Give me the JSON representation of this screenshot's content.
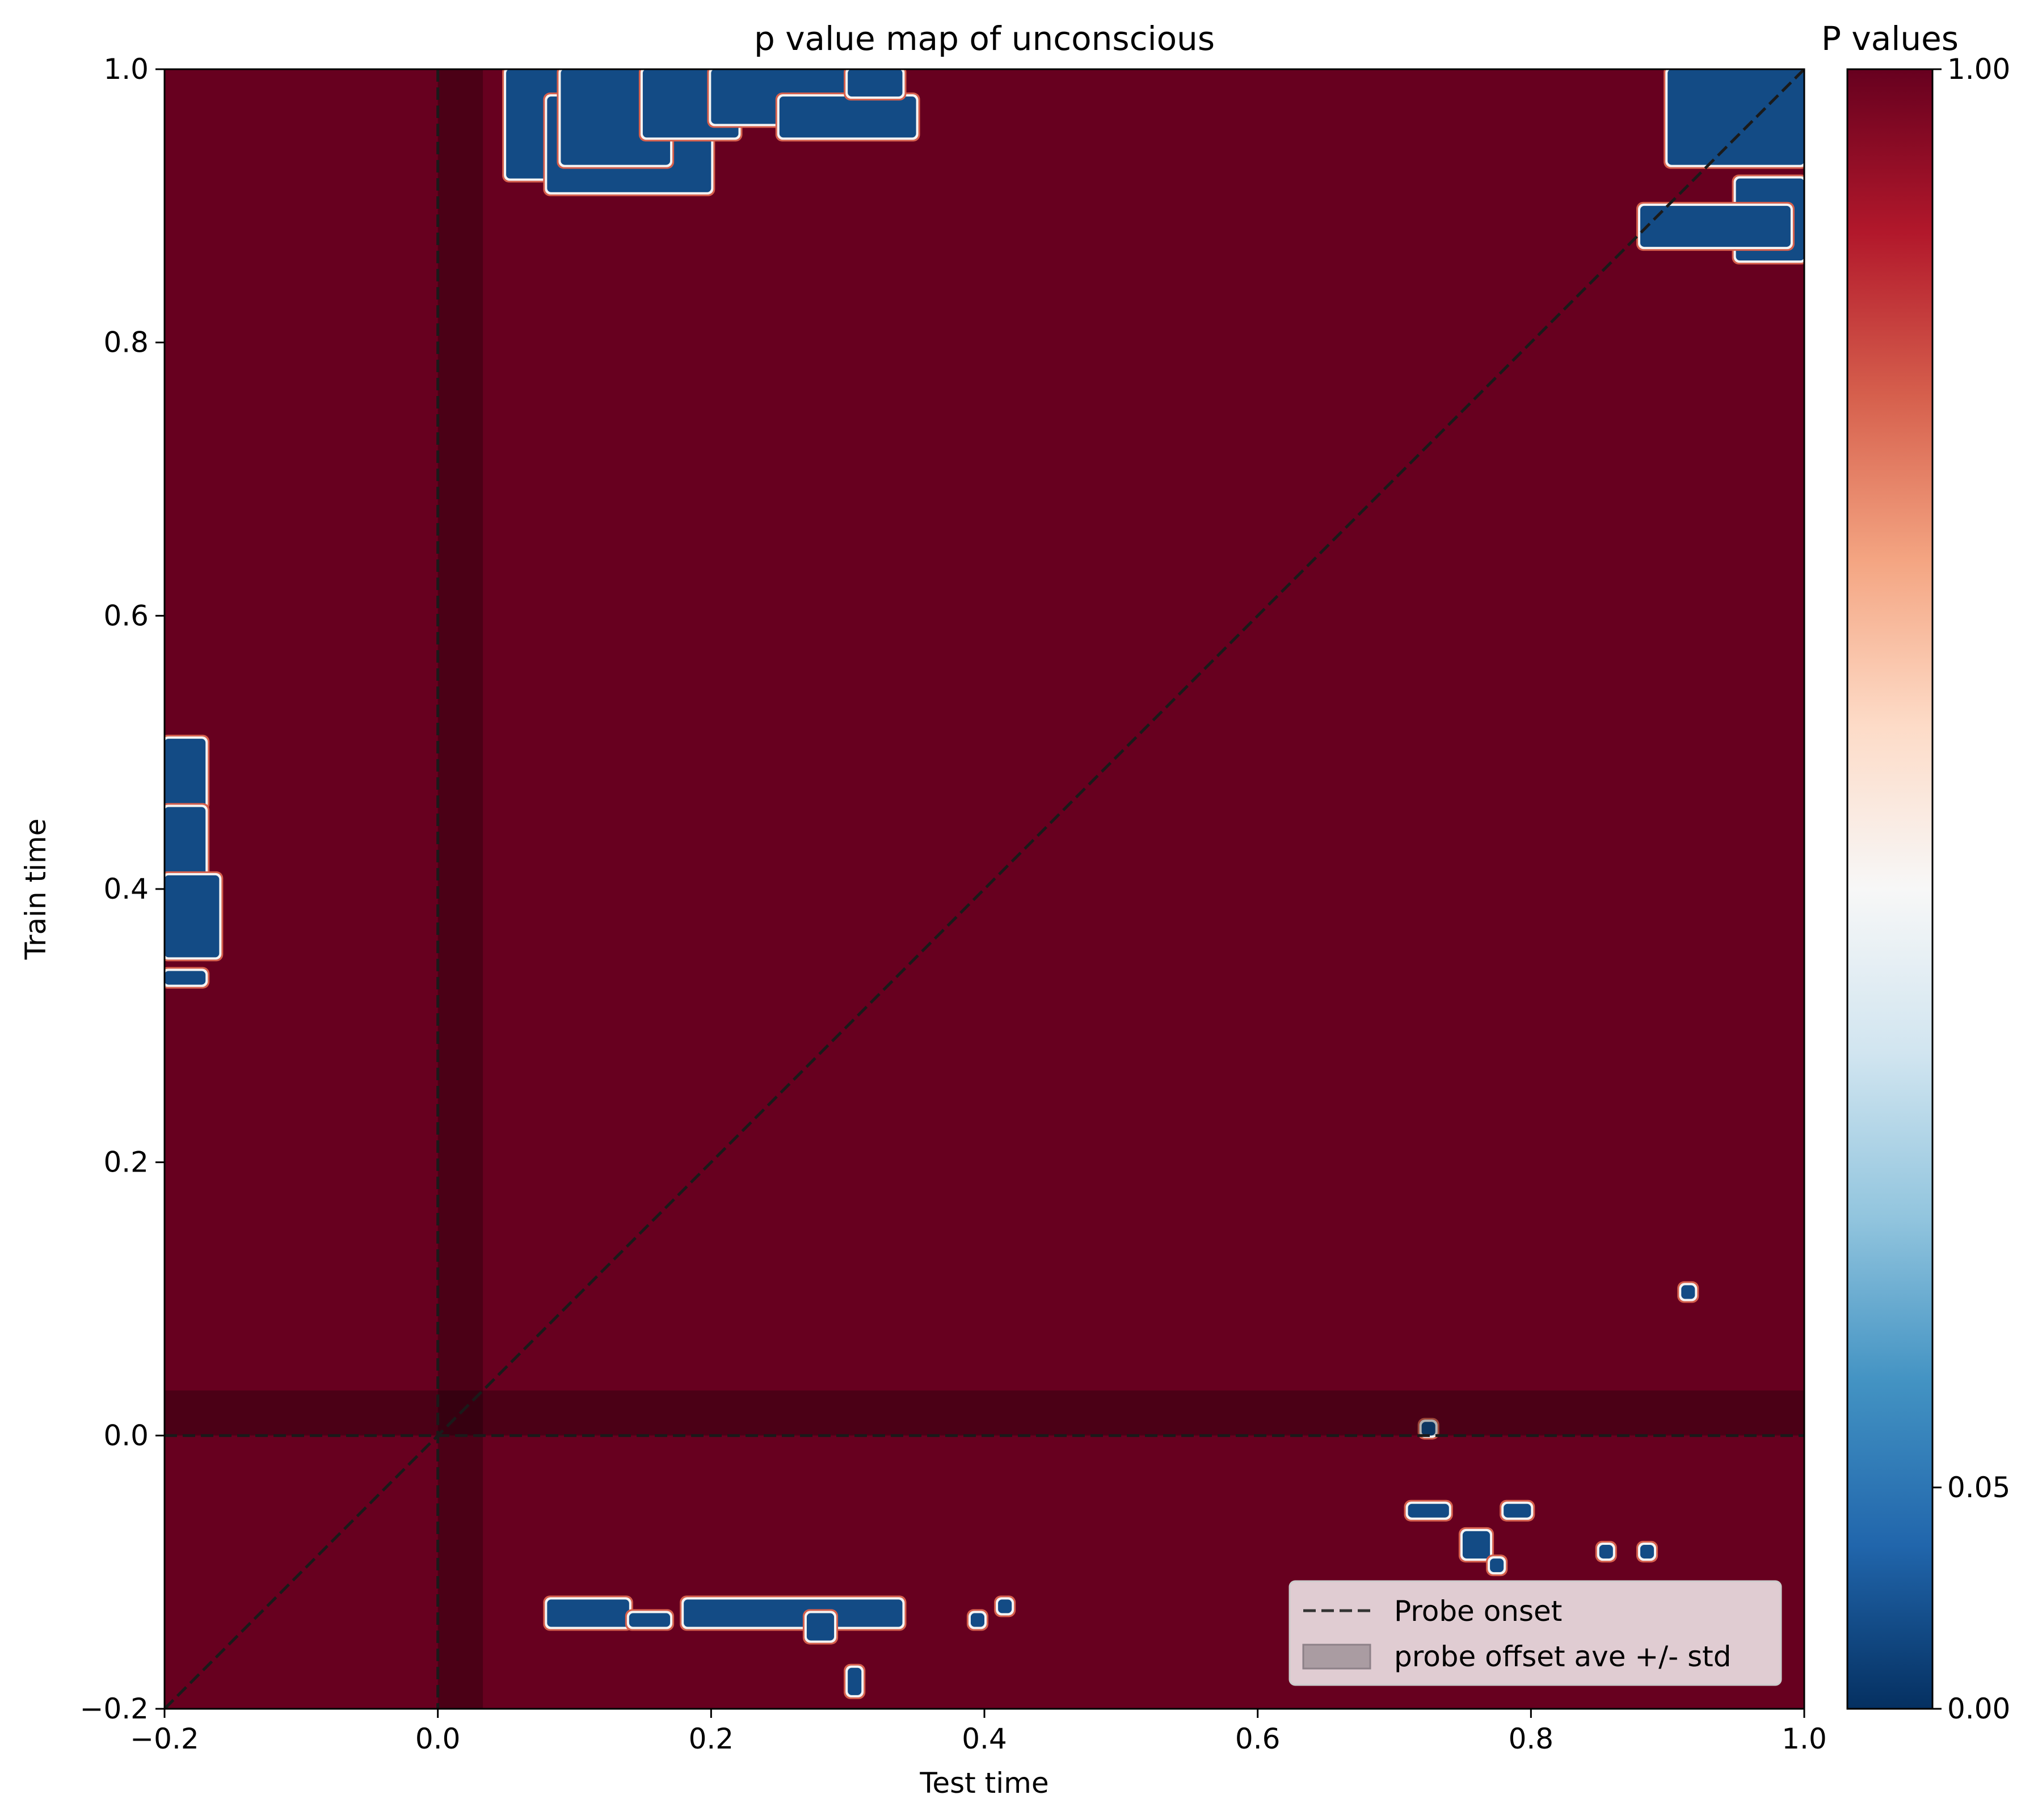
{
  "chart_data": {
    "type": "heatmap",
    "title": "p value map of unconscious",
    "xlabel": "Test time",
    "ylabel": "Train time",
    "xlim": [
      -0.2,
      1.0
    ],
    "ylim": [
      -0.2,
      1.0
    ],
    "xticks": [
      "−0.2",
      "0.0",
      "0.2",
      "0.4",
      "0.6",
      "0.8",
      "1.0"
    ],
    "yticks": [
      "−0.2",
      "0.0",
      "0.2",
      "0.4",
      "0.6",
      "0.8",
      "1.0"
    ],
    "grid": false,
    "background_value": 1.0,
    "colormap": "RdBu_r",
    "colorbar": {
      "title": "P values",
      "ticks": [
        "0.00",
        "0.05",
        "1.00"
      ],
      "colors": [
        "#053061",
        "#2166ac",
        "#4393c3",
        "#92c5de",
        "#d1e5f0",
        "#f7f7f7",
        "#fddbc7",
        "#f4a582",
        "#d6604d",
        "#b2182b",
        "#67001f"
      ]
    },
    "colors": {
      "nonsignificant": "#67001f",
      "significant": "#134b85",
      "contour": "#f4f4f4",
      "contour_outer": "#d6604d",
      "shade": "#000000"
    },
    "significant_clusters_p_below_0_05": [
      [
        [
          0.05,
          0.92
        ],
        [
          0.1,
          1.0
        ]
      ],
      [
        [
          0.08,
          0.91
        ],
        [
          0.2,
          0.98
        ]
      ],
      [
        [
          0.09,
          0.93
        ],
        [
          0.17,
          1.0
        ]
      ],
      [
        [
          0.15,
          0.95
        ],
        [
          0.22,
          1.0
        ]
      ],
      [
        [
          0.2,
          0.96
        ],
        [
          0.3,
          1.0
        ]
      ],
      [
        [
          0.25,
          0.95
        ],
        [
          0.35,
          0.98
        ]
      ],
      [
        [
          0.3,
          0.98
        ],
        [
          0.34,
          1.0
        ]
      ],
      [
        [
          0.9,
          0.93
        ],
        [
          1.0,
          1.0
        ]
      ],
      [
        [
          0.95,
          0.86
        ],
        [
          1.0,
          0.92
        ]
      ],
      [
        [
          0.88,
          0.87
        ],
        [
          0.99,
          0.9
        ]
      ],
      [
        [
          -0.2,
          0.46
        ],
        [
          -0.17,
          0.51
        ]
      ],
      [
        [
          -0.2,
          0.41
        ],
        [
          -0.17,
          0.46
        ]
      ],
      [
        [
          -0.2,
          0.35
        ],
        [
          -0.16,
          0.41
        ]
      ],
      [
        [
          -0.2,
          0.33
        ],
        [
          -0.17,
          0.34
        ]
      ],
      [
        [
          0.08,
          -0.14
        ],
        [
          0.14,
          -0.12
        ]
      ],
      [
        [
          0.14,
          -0.14
        ],
        [
          0.17,
          -0.13
        ]
      ],
      [
        [
          0.18,
          -0.14
        ],
        [
          0.34,
          -0.12
        ]
      ],
      [
        [
          0.27,
          -0.15
        ],
        [
          0.29,
          -0.13
        ]
      ],
      [
        [
          0.3,
          -0.19
        ],
        [
          0.31,
          -0.17
        ]
      ],
      [
        [
          0.39,
          -0.14
        ],
        [
          0.4,
          -0.13
        ]
      ],
      [
        [
          0.41,
          -0.13
        ],
        [
          0.42,
          -0.12
        ]
      ],
      [
        [
          0.72,
          0.0
        ],
        [
          0.73,
          0.01
        ]
      ],
      [
        [
          0.71,
          -0.06
        ],
        [
          0.74,
          -0.05
        ]
      ],
      [
        [
          0.75,
          -0.09
        ],
        [
          0.77,
          -0.07
        ]
      ],
      [
        [
          0.77,
          -0.1
        ],
        [
          0.78,
          -0.09
        ]
      ],
      [
        [
          0.78,
          -0.06
        ],
        [
          0.8,
          -0.05
        ]
      ],
      [
        [
          0.85,
          -0.09
        ],
        [
          0.86,
          -0.08
        ]
      ],
      [
        [
          0.88,
          -0.09
        ],
        [
          0.89,
          -0.08
        ]
      ],
      [
        [
          0.91,
          0.1
        ],
        [
          0.92,
          0.11
        ]
      ]
    ],
    "probe_onset": 0.0,
    "probe_offset_band": [
      0.0,
      0.033
    ],
    "diagonal_dashed_line": true,
    "legend": {
      "placement": "lower right",
      "entries": [
        {
          "label": "Probe onset",
          "style": "dashed line"
        },
        {
          "label": "probe offset ave +/- std",
          "style": "shaded patch"
        }
      ]
    }
  }
}
